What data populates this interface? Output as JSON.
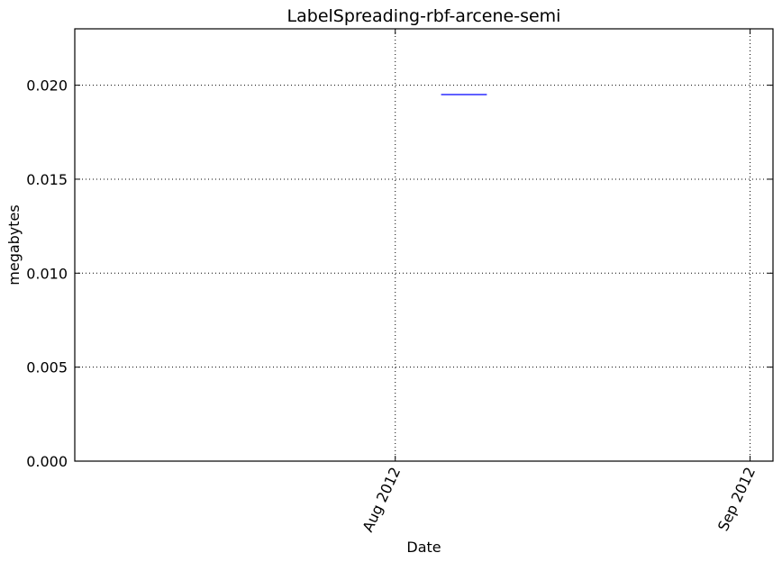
{
  "chart_data": {
    "type": "line",
    "title": "LabelSpreading-rbf-arcene-semi",
    "xlabel": "Date",
    "ylabel": "megabytes",
    "x_axis_type": "date",
    "xlim": [
      "2012-07-04",
      "2012-09-03"
    ],
    "ylim": [
      0,
      0.023
    ],
    "x_ticks": [
      {
        "value": "2012-08-01",
        "label": "Aug 2012"
      },
      {
        "value": "2012-09-01",
        "label": "Sep 2012"
      }
    ],
    "y_ticks": [
      {
        "value": 0.0,
        "label": "0.000"
      },
      {
        "value": 0.005,
        "label": "0.005"
      },
      {
        "value": 0.01,
        "label": "0.010"
      },
      {
        "value": 0.015,
        "label": "0.015"
      },
      {
        "value": 0.02,
        "label": "0.020"
      }
    ],
    "grid": true,
    "series": [
      {
        "color": "#0000ff",
        "x": [
          "2012-08-05",
          "2012-08-09"
        ],
        "values": [
          0.0195,
          0.0195
        ]
      }
    ]
  }
}
